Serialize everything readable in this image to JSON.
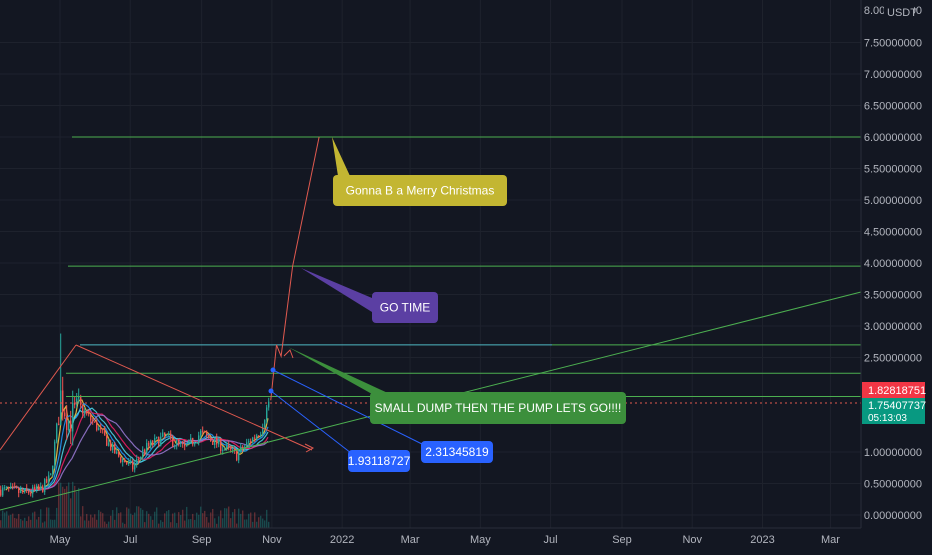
{
  "chart_data": {
    "type": "candlestick",
    "currency_label": "USDT",
    "y_top_label": "8.00000000",
    "y_ticks": [
      {
        "value": 7.5,
        "label": "7.50000000"
      },
      {
        "value": 7.0,
        "label": "7.00000000"
      },
      {
        "value": 6.5,
        "label": "6.50000000"
      },
      {
        "value": 6.0,
        "label": "6.00000000"
      },
      {
        "value": 5.5,
        "label": "5.50000000"
      },
      {
        "value": 5.0,
        "label": "5.00000000"
      },
      {
        "value": 4.5,
        "label": "4.50000000"
      },
      {
        "value": 4.0,
        "label": "4.00000000"
      },
      {
        "value": 3.5,
        "label": "3.50000000"
      },
      {
        "value": 3.0,
        "label": "3.00000000"
      },
      {
        "value": 2.5,
        "label": "2.50000000"
      },
      {
        "value": 1.0,
        "label": "1.00000000"
      },
      {
        "value": 0.5,
        "label": "0.50000000"
      },
      {
        "value": 0.0,
        "label": "0.00000000"
      }
    ],
    "x_ticks": [
      {
        "date": "2021-05-01",
        "label": "May"
      },
      {
        "date": "2021-07-01",
        "label": "Jul"
      },
      {
        "date": "2021-09-01",
        "label": "Sep"
      },
      {
        "date": "2021-11-01",
        "label": "Nov"
      },
      {
        "date": "2022-01-01",
        "label": "2022"
      },
      {
        "date": "2022-03-01",
        "label": "Mar"
      },
      {
        "date": "2022-05-01",
        "label": "May"
      },
      {
        "date": "2022-07-01",
        "label": "Jul"
      },
      {
        "date": "2022-09-01",
        "label": "Sep"
      },
      {
        "date": "2022-11-01",
        "label": "Nov"
      },
      {
        "date": "2023-01-01",
        "label": "2023"
      },
      {
        "date": "2023-03-01",
        "label": "Mar"
      }
    ],
    "price_badges": [
      {
        "value": 1.82818751,
        "label": "1.82818751",
        "color": "#f23645"
      },
      {
        "value": 1.75407737,
        "label": "1.75407737",
        "countdown": "05:13:03",
        "color": "#089981"
      }
    ],
    "horizontal_levels": [
      {
        "value": 6.0,
        "color": "#4caf50"
      },
      {
        "value": 3.95,
        "color": "#4caf50"
      },
      {
        "value": 2.7,
        "color": "#4fb8c4"
      },
      {
        "value": 2.25,
        "color": "#4caf50"
      },
      {
        "value": 1.88,
        "color": "#4caf50"
      }
    ],
    "annotations": [
      {
        "text": "Gonna B a Merry Christmas",
        "color": "#c3b632"
      },
      {
        "text": "GO TIME",
        "color": "#5b3fa3"
      },
      {
        "text": "SMALL DUMP THEN THE PUMP LETS GO!!!!",
        "color": "#3c8f3c"
      },
      {
        "text": "2.31345819",
        "color": "#2962ff"
      },
      {
        "text": "1.93118727",
        "color": "#2962ff"
      }
    ],
    "projection_path": [
      {
        "date": "2021-10-31",
        "value": 1.82
      },
      {
        "date": "2021-11-05",
        "value": 2.7
      },
      {
        "date": "2021-11-09",
        "value": 2.52
      },
      {
        "date": "2021-11-19",
        "value": 3.95
      },
      {
        "date": "2021-12-12",
        "value": 6.0
      }
    ],
    "colors": {
      "background": "#131722",
      "up": "#26a69a",
      "down": "#ef5350",
      "grid": "#1e222d"
    }
  }
}
